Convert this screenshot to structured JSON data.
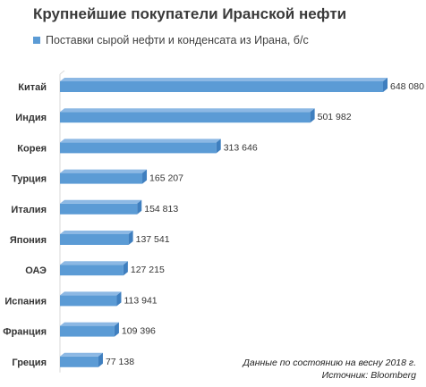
{
  "chart_data": {
    "type": "bar",
    "orientation": "horizontal",
    "style": "3d",
    "title": "Крупнейшие покупатели Иранской нефти",
    "legend": "top-left",
    "grid": false,
    "series": [
      {
        "name": "Поставки сырой нефти и конденсата из Ирана, б/с",
        "color": "#5b9bd5",
        "values": [
          648080,
          501982,
          313646,
          165207,
          154813,
          137541,
          127215,
          113941,
          109396,
          77138
        ]
      }
    ],
    "categories": [
      "Китай",
      "Индия",
      "Корея",
      "Турция",
      "Италия",
      "Япония",
      "ОАЭ",
      "Испания",
      "Франция",
      "Греция"
    ],
    "value_labels": [
      "648 080",
      "501 982",
      "313 646",
      "165 207",
      "154 813",
      "137 541",
      "127 215",
      "113 941",
      "109 396",
      "77 138"
    ],
    "xlim": [
      0,
      648080
    ]
  },
  "footnote": {
    "line1": "Данные по состоянию на весну 2018 г.",
    "line2": "Источник: Bloomberg"
  }
}
